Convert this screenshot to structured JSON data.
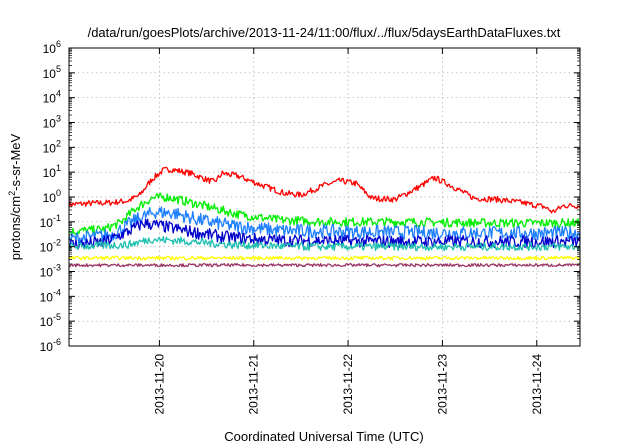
{
  "chart_data": {
    "type": "line",
    "title": "/data/run/goesPlots/archive/2013-11-24/11:00/flux/../flux/5daysEarthDataFluxes.txt",
    "xlabel": "Coordinated Universal Time (UTC)",
    "ylabel": {
      "prefix": "protons/cm",
      "sup": "2",
      "suffix": "-s-sr-MeV"
    },
    "yscale": "log",
    "ylim": [
      1e-06,
      1000000.0
    ],
    "yticks": [
      {
        "value": 1000000.0,
        "base": "10",
        "exp": "6"
      },
      {
        "value": 100000.0,
        "base": "10",
        "exp": "5"
      },
      {
        "value": 10000.0,
        "base": "10",
        "exp": "4"
      },
      {
        "value": 1000.0,
        "base": "10",
        "exp": "3"
      },
      {
        "value": 100.0,
        "base": "10",
        "exp": "2"
      },
      {
        "value": 10.0,
        "base": "10",
        "exp": "1"
      },
      {
        "value": 1.0,
        "base": "10",
        "exp": "0"
      },
      {
        "value": 0.1,
        "base": "10",
        "exp": "-1"
      },
      {
        "value": 0.01,
        "base": "10",
        "exp": "-2"
      },
      {
        "value": 0.001,
        "base": "10",
        "exp": "-3"
      },
      {
        "value": 0.0001,
        "base": "10",
        "exp": "-4"
      },
      {
        "value": 1e-05,
        "base": "10",
        "exp": "-5"
      },
      {
        "value": 1e-06,
        "base": "10",
        "exp": "-6"
      }
    ],
    "xlim": [
      "2013-11-19 01:00",
      "2013-11-24 11:00"
    ],
    "xticks": [
      "2013-11-20",
      "2013-11-21",
      "2013-11-22",
      "2013-11-23",
      "2013-11-24"
    ],
    "grid": true,
    "series": [
      {
        "color": "#ff0000",
        "noise": 0.12,
        "points": [
          [
            "2013-11-19 01:00",
            0.5
          ],
          [
            "2013-11-19 06:00",
            0.55
          ],
          [
            "2013-11-19 12:00",
            0.6
          ],
          [
            "2013-11-19 16:00",
            0.7
          ],
          [
            "2013-11-19 19:00",
            1.2
          ],
          [
            "2013-11-19 22:00",
            5
          ],
          [
            "2013-11-20 01:00",
            12
          ],
          [
            "2013-11-20 03:00",
            13
          ],
          [
            "2013-11-20 08:00",
            9
          ],
          [
            "2013-11-20 12:00",
            5
          ],
          [
            "2013-11-20 14:00",
            4
          ],
          [
            "2013-11-20 16:00",
            9
          ],
          [
            "2013-11-20 20:00",
            7
          ],
          [
            "2013-11-21 02:00",
            3
          ],
          [
            "2013-11-21 08:00",
            1.4
          ],
          [
            "2013-11-21 12:00",
            1.2
          ],
          [
            "2013-11-21 18:00",
            3
          ],
          [
            "2013-11-21 22:00",
            4.5
          ],
          [
            "2013-11-22 02:00",
            3.5
          ],
          [
            "2013-11-22 06:00",
            0.9
          ],
          [
            "2013-11-22 12:00",
            0.8
          ],
          [
            "2013-11-22 18:00",
            2.5
          ],
          [
            "2013-11-22 22:00",
            6
          ],
          [
            "2013-11-23 02:00",
            3
          ],
          [
            "2013-11-23 08:00",
            0.9
          ],
          [
            "2013-11-23 14:00",
            0.8
          ],
          [
            "2013-11-23 20:00",
            0.6
          ],
          [
            "2013-11-24 02:00",
            0.4
          ],
          [
            "2013-11-24 04:00",
            0.25
          ],
          [
            "2013-11-24 07:00",
            0.45
          ],
          [
            "2013-11-24 11:00",
            0.45
          ]
        ]
      },
      {
        "color": "#00ee00",
        "noise": 0.18,
        "points": [
          [
            "2013-11-19 01:00",
            0.04
          ],
          [
            "2013-11-19 10:00",
            0.05
          ],
          [
            "2013-11-19 14:00",
            0.09
          ],
          [
            "2013-11-19 18:00",
            0.35
          ],
          [
            "2013-11-19 22:00",
            0.9
          ],
          [
            "2013-11-20 02:00",
            1.0
          ],
          [
            "2013-11-20 08:00",
            0.6
          ],
          [
            "2013-11-20 14:00",
            0.35
          ],
          [
            "2013-11-20 20:00",
            0.2
          ],
          [
            "2013-11-21 06:00",
            0.12
          ],
          [
            "2013-11-21 18:00",
            0.1
          ],
          [
            "2013-11-22 12:00",
            0.1
          ],
          [
            "2013-11-23 12:00",
            0.09
          ],
          [
            "2013-11-24 11:00",
            0.09
          ]
        ]
      },
      {
        "color": "#1e7fff",
        "noise": 0.28,
        "points": [
          [
            "2013-11-19 01:00",
            0.02
          ],
          [
            "2013-11-19 12:00",
            0.03
          ],
          [
            "2013-11-19 18:00",
            0.12
          ],
          [
            "2013-11-19 23:00",
            0.25
          ],
          [
            "2013-11-20 04:00",
            0.22
          ],
          [
            "2013-11-20 10:00",
            0.12
          ],
          [
            "2013-11-20 18:00",
            0.07
          ],
          [
            "2013-11-21 06:00",
            0.045
          ],
          [
            "2013-11-22 00:00",
            0.04
          ],
          [
            "2013-11-23 12:00",
            0.035
          ],
          [
            "2013-11-24 11:00",
            0.035
          ]
        ]
      },
      {
        "color": "#0000cc",
        "noise": 0.25,
        "points": [
          [
            "2013-11-19 01:00",
            0.012
          ],
          [
            "2013-11-19 10:00",
            0.015
          ],
          [
            "2013-11-19 16:00",
            0.04
          ],
          [
            "2013-11-19 20:00",
            0.09
          ],
          [
            "2013-11-20 00:00",
            0.07
          ],
          [
            "2013-11-20 08:00",
            0.04
          ],
          [
            "2013-11-20 16:00",
            0.025
          ],
          [
            "2013-11-21 06:00",
            0.018
          ],
          [
            "2013-11-22 12:00",
            0.016
          ],
          [
            "2013-11-24 11:00",
            0.016
          ]
        ]
      },
      {
        "color": "#20c0b0",
        "noise": 0.16,
        "points": [
          [
            "2013-11-19 01:00",
            0.01
          ],
          [
            "2013-11-19 16:00",
            0.012
          ],
          [
            "2013-11-19 22:00",
            0.02
          ],
          [
            "2013-11-20 06:00",
            0.017
          ],
          [
            "2013-11-20 18:00",
            0.012
          ],
          [
            "2013-11-21 12:00",
            0.01
          ],
          [
            "2013-11-24 11:00",
            0.01
          ]
        ]
      },
      {
        "color": "#ffff00",
        "noise": 0.07,
        "points": [
          [
            "2013-11-19 01:00",
            0.0035
          ],
          [
            "2013-11-24 11:00",
            0.0035
          ]
        ]
      },
      {
        "color": "#993366",
        "noise": 0.06,
        "points": [
          [
            "2013-11-19 01:00",
            0.0018
          ],
          [
            "2013-11-24 11:00",
            0.0018
          ]
        ]
      }
    ]
  }
}
